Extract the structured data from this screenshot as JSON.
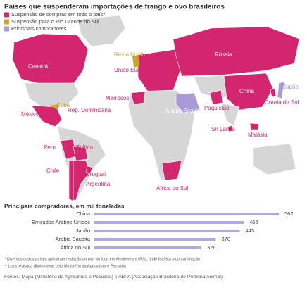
{
  "header": {
    "title": "Países que suspenderam importações de frango e ovo brasileiros"
  },
  "legend": [
    {
      "label": "Suspensão de compras em todo o país*",
      "color": "#d3266f"
    },
    {
      "label": "Suspensão para o Rio Grande do Sul",
      "color": "#c9a52a"
    },
    {
      "label": "Principais compradores",
      "color": "#a99bd6"
    }
  ],
  "map": {
    "labels": [
      "Canadá",
      "México",
      "Cuba",
      "Rep. Dominicana",
      "Peru",
      "Bolívia",
      "Chile",
      "Uruguai",
      "Argentina",
      "Reino Unido",
      "União Europeia",
      "Marrocos",
      "Rússia",
      "Arábia Saudita",
      "Paquistão",
      "China",
      "Coreia do Sul",
      "Japão",
      "Sri Lanka",
      "Malásia",
      "África do Sul"
    ]
  },
  "chart_data": {
    "type": "bar",
    "orientation": "horizontal",
    "title": "Principais compradores, em mil toneladas",
    "categories": [
      "China",
      "Emirados Árabes Unidos",
      "Japão",
      "Arábia Saudita",
      "África do Sul"
    ],
    "values": [
      562,
      455,
      443,
      370,
      326
    ],
    "color": "#b3a7dc"
  },
  "notes": [
    "* Diversos outros países aplicaram restrição ao raio do foco em Montenegro (RS), onde foi feita a contaminação",
    "** Lista revisada diariamente pelo Ministério da Agricultura e Pecuária",
    "Fontes: Mapa (Ministério da Agricultura e Pecuária) e ABPA (Associação Brasileira de Proteína Animal)"
  ]
}
